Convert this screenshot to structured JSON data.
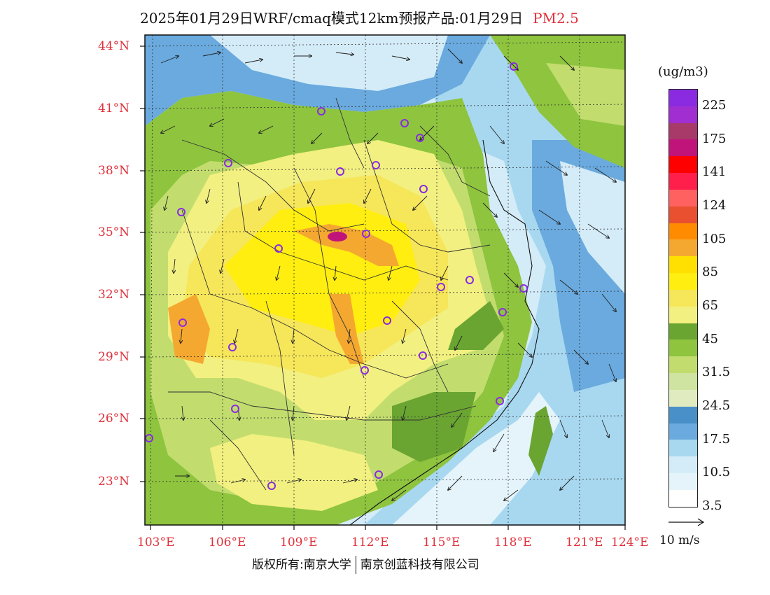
{
  "header": {
    "title": "2025年01月29日WRF/cmaq模式12km预报产品:01月29日",
    "pollutant": "PM2.5"
  },
  "map": {
    "lat_labels": [
      "44°N",
      "41°N",
      "38°N",
      "35°N",
      "32°N",
      "29°N",
      "26°N",
      "23°N"
    ],
    "lon_labels": [
      "103°E",
      "106°E",
      "109°E",
      "112°E",
      "115°E",
      "118°E",
      "121°E",
      "124°E"
    ],
    "city_marker_color": "#8a2be2"
  },
  "legend": {
    "unit": "(ug/m3)",
    "labels": [
      "225",
      "175",
      "141",
      "124",
      "105",
      "85",
      "65",
      "45",
      "31.5",
      "24.5",
      "17.5",
      "10.5",
      "3.5"
    ],
    "colors": [
      "#8a2be2",
      "#a02ed0",
      "#a83a6a",
      "#c0147a",
      "#ff0000",
      "#ff1f4a",
      "#ff6060",
      "#e85030",
      "#ff8c00",
      "#f5a830",
      "#ffe000",
      "#ffee10",
      "#f6e65a",
      "#f2f080",
      "#6aa532",
      "#8ec43e",
      "#c2dd6e",
      "#cfe4a0",
      "#e0ecc0",
      "#4a90c8",
      "#6aaade",
      "#a8d8f0",
      "#d4ecf8",
      "#e4f4fa",
      "#ffffff"
    ]
  },
  "scale": {
    "wind_label": "10 m/s"
  },
  "footer": {
    "copyright_left": "版权所有:南京大学",
    "copyright_right": "南京创蓝科技有限公司"
  }
}
